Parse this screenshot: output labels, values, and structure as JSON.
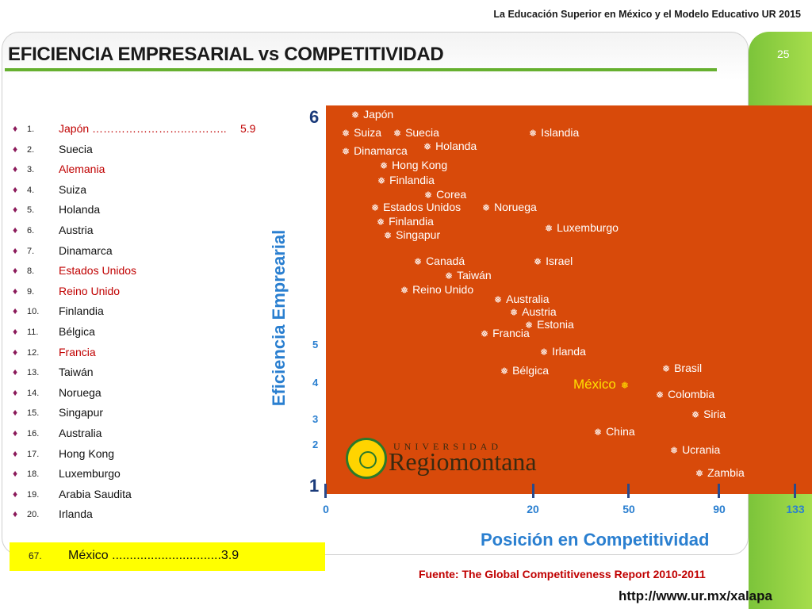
{
  "header": {
    "title": "La Educación Superior en México y el Modelo Educativo UR 2015",
    "slide_number": "25"
  },
  "main_title": "EFICIENCIA EMPRESARIAL vs COMPETITIVIDAD",
  "colors": {
    "plot_bg": "#d84a0a",
    "accent_green": "#66b02f",
    "axis_blue": "#2a7fd0",
    "highlight_red": "#c00000",
    "highlight_yellow": "#ffff00"
  },
  "ranking": [
    {
      "num": "1.",
      "name": "Japón ……………………..………..",
      "score": "5.9",
      "red": true
    },
    {
      "num": "2.",
      "name": "Suecia",
      "score": "",
      "red": false
    },
    {
      "num": "3.",
      "name": "Alemania",
      "score": "",
      "red": true
    },
    {
      "num": "4.",
      "name": "Suiza",
      "score": "",
      "red": false
    },
    {
      "num": "5.",
      "name": "Holanda",
      "score": "",
      "red": false
    },
    {
      "num": "6.",
      "name": "Austria",
      "score": "",
      "red": false
    },
    {
      "num": "7.",
      "name": "Dinamarca",
      "score": "",
      "red": false
    },
    {
      "num": "8.",
      "name": "Estados Unidos",
      "score": "",
      "red": true
    },
    {
      "num": "9.",
      "name": "Reino Unido",
      "score": "",
      "red": true
    },
    {
      "num": "10.",
      "name": "Finlandia",
      "score": "",
      "red": false
    },
    {
      "num": "11.",
      "name": "Bélgica",
      "score": "",
      "red": false
    },
    {
      "num": "12.",
      "name": "Francia",
      "score": "",
      "red": true
    },
    {
      "num": "13.",
      "name": "Taiwán",
      "score": "",
      "red": false
    },
    {
      "num": "14.",
      "name": "Noruega",
      "score": "",
      "red": false
    },
    {
      "num": "15.",
      "name": "Singapur",
      "score": "",
      "red": false
    },
    {
      "num": "16.",
      "name": "Australia",
      "score": "",
      "red": false
    },
    {
      "num": "17.",
      "name": "Hong Kong",
      "score": "",
      "red": false
    },
    {
      "num": "18.",
      "name": "Luxemburgo",
      "score": "",
      "red": false
    },
    {
      "num": "19.",
      "name": "Arabia Saudita",
      "score": "",
      "red": false
    },
    {
      "num": "20.",
      "name": "Irlanda",
      "score": "",
      "red": false
    }
  ],
  "mexico_entry": {
    "num": "67.",
    "text": "México ...............................3.9"
  },
  "axes": {
    "ylabel": "Eficiencia Emprearial",
    "xlabel": "Posición en Competitividad",
    "yticks": [
      "6",
      "5",
      "4",
      "3",
      "2",
      "1"
    ],
    "xticks": [
      "0",
      "20",
      "50",
      "90",
      "133"
    ]
  },
  "points": [
    {
      "label": "Japón",
      "mexico": false
    },
    {
      "label": "Suiza",
      "mexico": false
    },
    {
      "label": "Suecia",
      "mexico": false
    },
    {
      "label": "Islandia",
      "mexico": false
    },
    {
      "label": "Holanda",
      "mexico": false
    },
    {
      "label": "Dinamarca",
      "mexico": false
    },
    {
      "label": "Hong Kong",
      "mexico": false
    },
    {
      "label": "Finlandia",
      "mexico": false
    },
    {
      "label": "Corea",
      "mexico": false
    },
    {
      "label": "Estados Unidos",
      "mexico": false
    },
    {
      "label": "Noruega",
      "mexico": false
    },
    {
      "label": "Finlandia",
      "mexico": false
    },
    {
      "label": "Luxemburgo",
      "mexico": false
    },
    {
      "label": "Singapur",
      "mexico": false
    },
    {
      "label": "Canadá",
      "mexico": false
    },
    {
      "label": "Israel",
      "mexico": false
    },
    {
      "label": "Taiwán",
      "mexico": false
    },
    {
      "label": "Reino Unido",
      "mexico": false
    },
    {
      "label": "Australia",
      "mexico": false
    },
    {
      "label": "Austria",
      "mexico": false
    },
    {
      "label": "Estonia",
      "mexico": false
    },
    {
      "label": "Francia",
      "mexico": false
    },
    {
      "label": "Irlanda",
      "mexico": false
    },
    {
      "label": "Bélgica",
      "mexico": false
    },
    {
      "label": "Brasil",
      "mexico": false
    },
    {
      "label": "México",
      "mexico": true
    },
    {
      "label": "Colombia",
      "mexico": false
    },
    {
      "label": "Siria",
      "mexico": false
    },
    {
      "label": "China",
      "mexico": false
    },
    {
      "label": "Ucrania",
      "mexico": false
    },
    {
      "label": "Zambia",
      "mexico": false
    }
  ],
  "logo": {
    "top_text": "UNIVERSIDAD",
    "main_text": "Regiomontana"
  },
  "source": "Fuente: The Global Competitiveness Report 2010-2011",
  "url": "http://www.ur.mx/xalapa"
}
